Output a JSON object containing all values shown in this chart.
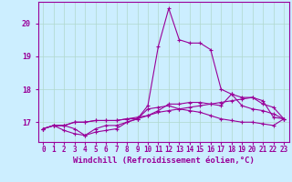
{
  "background_color": "#cceeff",
  "grid_color": "#b0d8cc",
  "line_color": "#990099",
  "marker": "+",
  "xlabel": "Windchill (Refroidissement éolien,°C)",
  "xlabel_fontsize": 6.5,
  "xtick_fontsize": 5.5,
  "ytick_fontsize": 6,
  "xlim": [
    -0.5,
    23.5
  ],
  "ylim": [
    16.4,
    20.65
  ],
  "yticks": [
    17,
    18,
    19,
    20
  ],
  "series": {
    "main": [
      16.8,
      16.9,
      16.9,
      16.8,
      16.6,
      16.8,
      16.9,
      16.9,
      17.0,
      17.1,
      17.5,
      19.3,
      20.45,
      19.5,
      19.4,
      19.4,
      19.2,
      18.0,
      17.85,
      17.5,
      17.4,
      17.35,
      17.25,
      17.1
    ],
    "line2": [
      16.8,
      16.9,
      16.9,
      17.0,
      17.0,
      17.05,
      17.05,
      17.05,
      17.1,
      17.1,
      17.2,
      17.3,
      17.35,
      17.4,
      17.45,
      17.5,
      17.55,
      17.6,
      17.65,
      17.7,
      17.75,
      17.65,
      17.15,
      17.1
    ],
    "line3": [
      16.8,
      16.9,
      16.9,
      17.0,
      17.0,
      17.05,
      17.05,
      17.05,
      17.1,
      17.15,
      17.2,
      17.35,
      17.55,
      17.55,
      17.6,
      17.6,
      17.55,
      17.5,
      17.85,
      17.75,
      17.75,
      17.55,
      17.45,
      17.1
    ],
    "line4": [
      16.8,
      16.9,
      16.75,
      16.65,
      16.6,
      16.7,
      16.75,
      16.8,
      17.0,
      17.1,
      17.4,
      17.45,
      17.5,
      17.4,
      17.35,
      17.3,
      17.2,
      17.1,
      17.05,
      17.0,
      17.0,
      16.95,
      16.9,
      17.1
    ]
  }
}
